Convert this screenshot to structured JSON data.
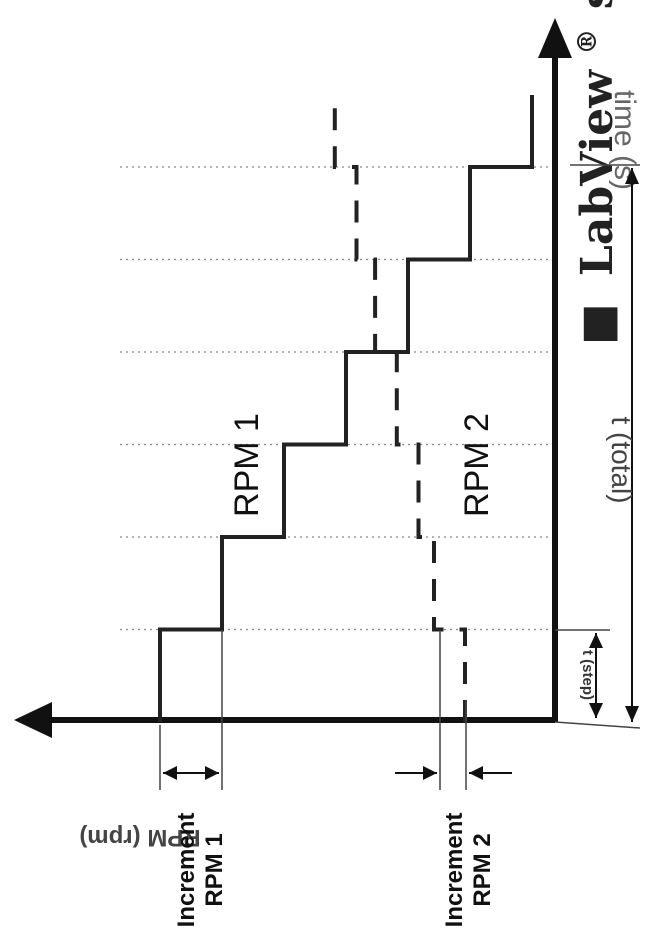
{
  "heading": {
    "bullet_glyph": "■",
    "text": "LabView",
    "superscript": "®",
    "trailing": "so"
  },
  "axes": {
    "y_label": "RPM (rpm)",
    "x_label": "time (s)"
  },
  "series": [
    {
      "name": "RPM 1",
      "style": "solid",
      "color": "#222222"
    },
    {
      "name": "RPM 2",
      "style": "dashed",
      "color": "#222222"
    }
  ],
  "labels": {
    "increment_rpm1": [
      "Increment",
      "RPM 1"
    ],
    "increment_rpm2": [
      "Increment",
      "RPM 2"
    ],
    "t_step": "t (step)",
    "t_total": "t (total)"
  },
  "chart_data": {
    "type": "line",
    "title": "",
    "xlabel": "time (s)",
    "ylabel": "RPM (rpm)",
    "step_intervals": 6,
    "grid": "vertical dotted lines at each step",
    "rpm1_levels": [
      0,
      1,
      2,
      3,
      4,
      5,
      6
    ],
    "rpm2_levels": [
      0,
      0.5,
      0.75,
      1.1,
      1.45,
      1.75,
      2.1
    ]
  }
}
